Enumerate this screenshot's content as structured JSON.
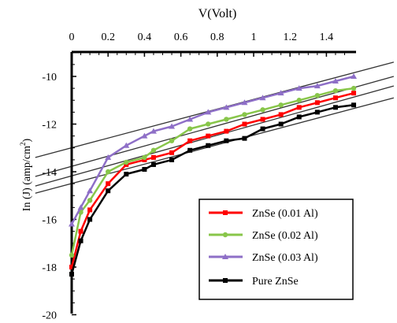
{
  "chart_data": {
    "type": "line",
    "title": "",
    "xlabel": "V(Volt)",
    "ylabel": "In (J) (amp/cm",
    "ylabel_sup": "2",
    "ylabel_close": ")",
    "xlim": [
      0,
      1.55
    ],
    "ylim": [
      -20,
      -8.8
    ],
    "xticks": [
      "0",
      "0.2",
      "0.4",
      "0.6",
      "0.8",
      "1",
      "1.2",
      "1.4"
    ],
    "yticks": [
      "-10",
      "-12",
      "-14",
      "-16",
      "-18",
      "-20"
    ],
    "grid": false,
    "legend_position": "bottom-right",
    "series": [
      {
        "name": "ZnSe (0.01 Al)",
        "color": "#ff0000",
        "marker": "square",
        "x": [
          0,
          0.05,
          0.1,
          0.2,
          0.3,
          0.4,
          0.45,
          0.55,
          0.65,
          0.75,
          0.85,
          0.95,
          1.05,
          1.15,
          1.25,
          1.35,
          1.45,
          1.55
        ],
        "y": [
          -18,
          -16.5,
          -15.6,
          -14.5,
          -13.7,
          -13.5,
          -13.4,
          -13.2,
          -12.7,
          -12.5,
          -12.3,
          -12.0,
          -11.8,
          -11.6,
          -11.3,
          -11.1,
          -10.9,
          -10.7
        ]
      },
      {
        "name": "ZnSe (0.02 Al)",
        "color": "#88c64a",
        "marker": "circle",
        "x": [
          0,
          0.05,
          0.1,
          0.2,
          0.3,
          0.4,
          0.45,
          0.55,
          0.65,
          0.75,
          0.85,
          0.95,
          1.05,
          1.15,
          1.25,
          1.35,
          1.45,
          1.55
        ],
        "y": [
          -17.5,
          -15.7,
          -15.2,
          -14.0,
          -13.6,
          -13.4,
          -13.1,
          -12.7,
          -12.2,
          -12.0,
          -11.8,
          -11.6,
          -11.4,
          -11.2,
          -11.0,
          -10.8,
          -10.6,
          -10.5
        ]
      },
      {
        "name": "ZnSe (0.03 Al)",
        "color": "#8e6fc7",
        "marker": "triangle",
        "x": [
          0,
          0.05,
          0.1,
          0.2,
          0.3,
          0.4,
          0.45,
          0.55,
          0.65,
          0.75,
          0.85,
          0.95,
          1.05,
          1.15,
          1.25,
          1.35,
          1.45,
          1.55
        ],
        "y": [
          -16.2,
          -15.5,
          -14.8,
          -13.4,
          -12.9,
          -12.5,
          -12.3,
          -12.1,
          -11.8,
          -11.5,
          -11.3,
          -11.1,
          -10.9,
          -10.7,
          -10.5,
          -10.4,
          -10.2,
          -10.0
        ]
      },
      {
        "name": "Pure ZnSe",
        "color": "#000000",
        "marker": "square",
        "x": [
          0,
          0.05,
          0.1,
          0.2,
          0.3,
          0.4,
          0.45,
          0.55,
          0.65,
          0.75,
          0.85,
          0.95,
          1.05,
          1.15,
          1.25,
          1.35,
          1.45,
          1.55
        ],
        "y": [
          -18.3,
          -16.9,
          -16.0,
          -14.8,
          -14.1,
          -13.9,
          -13.7,
          -13.5,
          -13.1,
          -12.9,
          -12.7,
          -12.6,
          -12.2,
          -12.0,
          -11.7,
          -11.5,
          -11.3,
          -11.2
        ]
      }
    ],
    "fit_lines": [
      {
        "x": [
          -0.2,
          1.77
        ],
        "y": [
          -13.4,
          -9.4
        ]
      },
      {
        "x": [
          -0.2,
          1.77
        ],
        "y": [
          -14.2,
          -10.0
        ]
      },
      {
        "x": [
          -0.2,
          1.77
        ],
        "y": [
          -14.6,
          -10.4
        ]
      },
      {
        "x": [
          -0.2,
          1.77
        ],
        "y": [
          -14.9,
          -10.9
        ]
      }
    ]
  }
}
